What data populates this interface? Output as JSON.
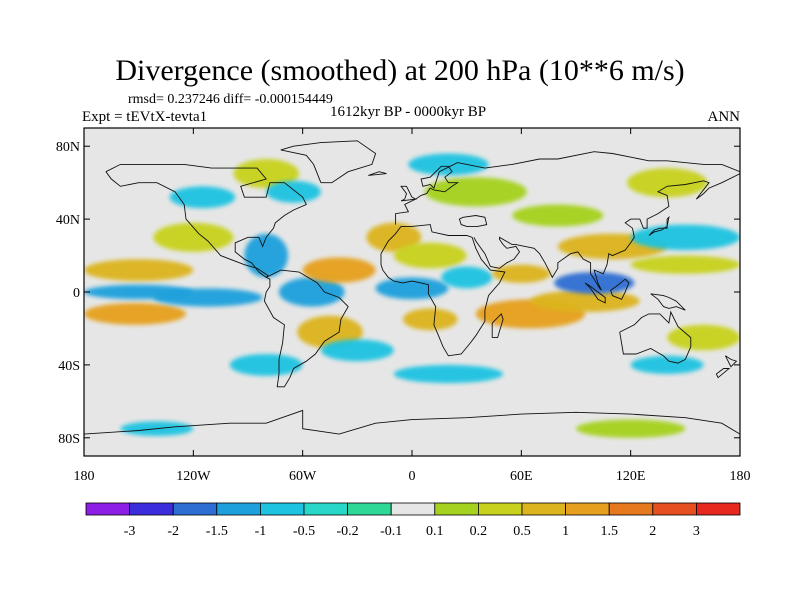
{
  "title": "Divergence (smoothed) at 200 hPa (10**6 m/s)",
  "stats": "rmsd= 0.237246 diff= -0.000154449",
  "experiment": "Expt = tEVtX-tevta1",
  "period": "1612kyr BP - 0000kyr BP",
  "season": "ANN",
  "map_axes": {
    "lon_ticks": [
      {
        "lon": -180,
        "label": "180"
      },
      {
        "lon": -120,
        "label": "120W"
      },
      {
        "lon": -60,
        "label": "60W"
      },
      {
        "lon": 0,
        "label": "0"
      },
      {
        "lon": 60,
        "label": "60E"
      },
      {
        "lon": 120,
        "label": "120E"
      },
      {
        "lon": 180,
        "label": "180"
      }
    ],
    "lat_ticks": [
      {
        "lat": 80,
        "label": "80N"
      },
      {
        "lat": 40,
        "label": "40N"
      },
      {
        "lat": 0,
        "label": "0"
      },
      {
        "lat": -40,
        "label": "40S"
      },
      {
        "lat": -80,
        "label": "80S"
      }
    ],
    "lon_range": [
      -180,
      180
    ],
    "lat_range": [
      -90,
      90
    ]
  },
  "colorbar": {
    "colors": [
      "#8c1ee6",
      "#3c2ddc",
      "#2d6ed2",
      "#1ea0dc",
      "#1ec3e1",
      "#28d7c8",
      "#2dd796",
      "#e6e6e6",
      "#a5d21e",
      "#c8d21e",
      "#dcb41e",
      "#e6a01e",
      "#e6781e",
      "#e6501e",
      "#e6281e"
    ],
    "labels": [
      "-3",
      "-2",
      "-1.5",
      "-1",
      "-0.5",
      "-0.2",
      "-0.1",
      "0.1",
      "0.2",
      "0.5",
      "1",
      "1.5",
      "2",
      "3"
    ]
  },
  "field_blobs": [
    {
      "lon": -150,
      "lat": 12,
      "rlon": 30,
      "rlat": 6,
      "v": 1
    },
    {
      "lon": -152,
      "lat": -12,
      "rlon": 28,
      "rlat": 6,
      "v": 1.5
    },
    {
      "lon": -150,
      "lat": 0,
      "rlon": 30,
      "rlat": 4,
      "v": -1
    },
    {
      "lon": -112,
      "lat": -3,
      "rlon": 30,
      "rlat": 5,
      "v": -1
    },
    {
      "lon": -120,
      "lat": 30,
      "rlon": 22,
      "rlat": 8,
      "v": 0.5
    },
    {
      "lon": -115,
      "lat": 52,
      "rlon": 18,
      "rlat": 6,
      "v": -0.5
    },
    {
      "lon": -80,
      "lat": 65,
      "rlon": 18,
      "rlat": 8,
      "v": 0.5
    },
    {
      "lon": -65,
      "lat": 55,
      "rlon": 15,
      "rlat": 6,
      "v": -0.5
    },
    {
      "lon": -80,
      "lat": 20,
      "rlon": 12,
      "rlat": 12,
      "v": -1
    },
    {
      "lon": -55,
      "lat": 0,
      "rlon": 18,
      "rlat": 8,
      "v": -1
    },
    {
      "lon": -40,
      "lat": 12,
      "rlon": 20,
      "rlat": 7,
      "v": 1.5
    },
    {
      "lon": -45,
      "lat": -22,
      "rlon": 18,
      "rlat": 9,
      "v": 1
    },
    {
      "lon": -30,
      "lat": -32,
      "rlon": 20,
      "rlat": 6,
      "v": -0.5
    },
    {
      "lon": -10,
      "lat": 30,
      "rlon": 15,
      "rlat": 8,
      "v": 1
    },
    {
      "lon": 10,
      "lat": 20,
      "rlon": 20,
      "rlat": 7,
      "v": 0.5
    },
    {
      "lon": 0,
      "lat": 2,
      "rlon": 20,
      "rlat": 6,
      "v": -1
    },
    {
      "lon": 10,
      "lat": -15,
      "rlon": 15,
      "rlat": 6,
      "v": 1
    },
    {
      "lon": 30,
      "lat": 8,
      "rlon": 14,
      "rlat": 6,
      "v": -0.5
    },
    {
      "lon": 60,
      "lat": 10,
      "rlon": 16,
      "rlat": 5,
      "v": 1
    },
    {
      "lon": 65,
      "lat": -12,
      "rlon": 30,
      "rlat": 8,
      "v": 1.5
    },
    {
      "lon": 95,
      "lat": -5,
      "rlon": 30,
      "rlat": 6,
      "v": 1
    },
    {
      "lon": 100,
      "lat": 5,
      "rlon": 22,
      "rlat": 6,
      "v": -1.5
    },
    {
      "lon": 110,
      "lat": 25,
      "rlon": 30,
      "rlat": 7,
      "v": 1
    },
    {
      "lon": 150,
      "lat": 30,
      "rlon": 30,
      "rlat": 7,
      "v": -0.5
    },
    {
      "lon": 150,
      "lat": 15,
      "rlon": 30,
      "rlat": 5,
      "v": 0.5
    },
    {
      "lon": 35,
      "lat": 55,
      "rlon": 28,
      "rlat": 8,
      "v": 0.2
    },
    {
      "lon": 20,
      "lat": 70,
      "rlon": 22,
      "rlat": 6,
      "v": -0.5
    },
    {
      "lon": 80,
      "lat": 42,
      "rlon": 25,
      "rlat": 6,
      "v": 0.2
    },
    {
      "lon": 140,
      "lat": 60,
      "rlon": 22,
      "rlat": 8,
      "v": 0.5
    },
    {
      "lon": 160,
      "lat": -25,
      "rlon": 20,
      "rlat": 7,
      "v": 0.5
    },
    {
      "lon": 140,
      "lat": -40,
      "rlon": 20,
      "rlat": 5,
      "v": -0.5
    },
    {
      "lon": 20,
      "lat": -45,
      "rlon": 30,
      "rlat": 5,
      "v": -0.5
    },
    {
      "lon": -80,
      "lat": -40,
      "rlon": 20,
      "rlat": 6,
      "v": -0.5
    },
    {
      "lon": 120,
      "lat": -75,
      "rlon": 30,
      "rlat": 5,
      "v": 0.2
    },
    {
      "lon": -140,
      "lat": -75,
      "rlon": 20,
      "rlat": 4,
      "v": -0.5
    }
  ],
  "coastlines": [
    [
      [
        -168,
        66
      ],
      [
        -160,
        70
      ],
      [
        -140,
        70
      ],
      [
        -125,
        70
      ],
      [
        -110,
        68
      ],
      [
        -95,
        68
      ],
      [
        -85,
        68
      ],
      [
        -80,
        62
      ],
      [
        -94,
        58
      ],
      [
        -92,
        52
      ],
      [
        -80,
        52
      ],
      [
        -78,
        60
      ],
      [
        -70,
        60
      ],
      [
        -60,
        52
      ],
      [
        -58,
        48
      ],
      [
        -65,
        45
      ],
      [
        -70,
        42
      ],
      [
        -75,
        38
      ],
      [
        -76,
        35
      ],
      [
        -80,
        30
      ],
      [
        -82,
        25
      ],
      [
        -84,
        30
      ],
      [
        -90,
        30
      ],
      [
        -97,
        27
      ],
      [
        -97,
        22
      ],
      [
        -92,
        18
      ],
      [
        -88,
        16
      ],
      [
        -84,
        11
      ],
      [
        -80,
        8
      ],
      [
        -79,
        9
      ],
      [
        -85,
        13
      ],
      [
        -92,
        15
      ],
      [
        -105,
        20
      ],
      [
        -112,
        28
      ],
      [
        -117,
        32
      ],
      [
        -124,
        40
      ],
      [
        -125,
        48
      ],
      [
        -130,
        55
      ],
      [
        -140,
        60
      ],
      [
        -150,
        60
      ],
      [
        -160,
        58
      ],
      [
        -165,
        62
      ],
      [
        -168,
        66
      ]
    ],
    [
      [
        -80,
        8
      ],
      [
        -72,
        12
      ],
      [
        -62,
        11
      ],
      [
        -52,
        5
      ],
      [
        -48,
        0
      ],
      [
        -40,
        -3
      ],
      [
        -35,
        -8
      ],
      [
        -39,
        -15
      ],
      [
        -40,
        -22
      ],
      [
        -48,
        -27
      ],
      [
        -53,
        -34
      ],
      [
        -58,
        -38
      ],
      [
        -65,
        -42
      ],
      [
        -67,
        -47
      ],
      [
        -70,
        -52
      ],
      [
        -74,
        -52
      ],
      [
        -73,
        -45
      ],
      [
        -73,
        -37
      ],
      [
        -71,
        -28
      ],
      [
        -70,
        -18
      ],
      [
        -76,
        -14
      ],
      [
        -81,
        -5
      ],
      [
        -80,
        0
      ],
      [
        -78,
        3
      ],
      [
        -78,
        7
      ],
      [
        -80,
        8
      ]
    ],
    [
      [
        -50,
        60
      ],
      [
        -44,
        60
      ],
      [
        -35,
        66
      ],
      [
        -22,
        70
      ],
      [
        -20,
        76
      ],
      [
        -30,
        83
      ],
      [
        -50,
        82
      ],
      [
        -65,
        80
      ],
      [
        -72,
        78
      ],
      [
        -58,
        75
      ],
      [
        -54,
        70
      ],
      [
        -50,
        60
      ]
    ],
    [
      [
        -17,
        15
      ],
      [
        -17,
        21
      ],
      [
        -13,
        28
      ],
      [
        -9,
        32
      ],
      [
        -6,
        36
      ],
      [
        0,
        36
      ],
      [
        10,
        37
      ],
      [
        11,
        33
      ],
      [
        20,
        31
      ],
      [
        30,
        31
      ],
      [
        33,
        30
      ],
      [
        35,
        24
      ],
      [
        38,
        18
      ],
      [
        43,
        12
      ],
      [
        51,
        11
      ],
      [
        48,
        5
      ],
      [
        42,
        -2
      ],
      [
        40,
        -10
      ],
      [
        40,
        -16
      ],
      [
        35,
        -24
      ],
      [
        32,
        -28
      ],
      [
        27,
        -34
      ],
      [
        20,
        -35
      ],
      [
        17,
        -30
      ],
      [
        15,
        -25
      ],
      [
        12,
        -18
      ],
      [
        13,
        -8
      ],
      [
        9,
        -1
      ],
      [
        9,
        4
      ],
      [
        5,
        5
      ],
      [
        0,
        6
      ],
      [
        -5,
        5
      ],
      [
        -10,
        6
      ],
      [
        -13,
        8
      ],
      [
        -16,
        12
      ],
      [
        -17,
        15
      ]
    ],
    [
      [
        -9,
        37
      ],
      [
        -9,
        43
      ],
      [
        -2,
        44
      ],
      [
        -4,
        48
      ],
      [
        2,
        51
      ],
      [
        5,
        53
      ],
      [
        8,
        54
      ],
      [
        10,
        57
      ],
      [
        12,
        56
      ],
      [
        18,
        55
      ],
      [
        22,
        58
      ],
      [
        25,
        60
      ],
      [
        20,
        60
      ],
      [
        18,
        63
      ],
      [
        22,
        66
      ],
      [
        20,
        69
      ],
      [
        16,
        69
      ],
      [
        10,
        63
      ],
      [
        5,
        62
      ],
      [
        6,
        58
      ],
      [
        10,
        59
      ],
      [
        12,
        57
      ],
      [
        15,
        66
      ],
      [
        25,
        71
      ],
      [
        40,
        68
      ],
      [
        55,
        70
      ],
      [
        70,
        73
      ],
      [
        80,
        73
      ],
      [
        100,
        77
      ],
      [
        110,
        76
      ],
      [
        130,
        72
      ],
      [
        140,
        72
      ],
      [
        160,
        70
      ],
      [
        170,
        70
      ],
      [
        180,
        66
      ]
    ],
    [
      [
        28,
        41
      ],
      [
        35,
        42
      ],
      [
        40,
        41
      ],
      [
        41,
        37
      ],
      [
        36,
        36
      ],
      [
        30,
        36
      ],
      [
        27,
        37
      ],
      [
        26,
        40
      ],
      [
        28,
        41
      ]
    ],
    [
      [
        34,
        30
      ],
      [
        35,
        28
      ],
      [
        40,
        21
      ],
      [
        43,
        14
      ],
      [
        48,
        13
      ],
      [
        52,
        16
      ],
      [
        56,
        18
      ],
      [
        59,
        22
      ],
      [
        57,
        25
      ],
      [
        52,
        24
      ],
      [
        50,
        26
      ],
      [
        48,
        29
      ],
      [
        48,
        30
      ],
      [
        55,
        26
      ],
      [
        57,
        26
      ],
      [
        62,
        25
      ],
      [
        67,
        24
      ],
      [
        70,
        21
      ],
      [
        73,
        16
      ],
      [
        75,
        12
      ],
      [
        77,
        8
      ],
      [
        80,
        13
      ],
      [
        80,
        16
      ],
      [
        87,
        21
      ],
      [
        91,
        22
      ],
      [
        94,
        18
      ],
      [
        98,
        16
      ],
      [
        98,
        10
      ],
      [
        100,
        7
      ],
      [
        103,
        2
      ],
      [
        104,
        1
      ],
      [
        102,
        5
      ],
      [
        100,
        12
      ],
      [
        105,
        10
      ],
      [
        107,
        15
      ],
      [
        108,
        21
      ],
      [
        110,
        20
      ],
      [
        117,
        23
      ],
      [
        120,
        27
      ],
      [
        122,
        30
      ],
      [
        121,
        35
      ],
      [
        117,
        38
      ],
      [
        120,
        40
      ],
      [
        125,
        40
      ],
      [
        127,
        35
      ],
      [
        129,
        35
      ],
      [
        129,
        40
      ],
      [
        135,
        43
      ],
      [
        141,
        47
      ],
      [
        140,
        53
      ],
      [
        135,
        55
      ],
      [
        140,
        58
      ],
      [
        150,
        59
      ],
      [
        160,
        61
      ],
      [
        163,
        60
      ],
      [
        156,
        51
      ],
      [
        160,
        54
      ],
      [
        163,
        57
      ],
      [
        170,
        60
      ],
      [
        180,
        65
      ]
    ],
    [
      [
        114,
        -22
      ],
      [
        116,
        -34
      ],
      [
        123,
        -34
      ],
      [
        131,
        -31
      ],
      [
        138,
        -35
      ],
      [
        141,
        -38
      ],
      [
        146,
        -39
      ],
      [
        150,
        -37
      ],
      [
        153,
        -30
      ],
      [
        153,
        -25
      ],
      [
        146,
        -19
      ],
      [
        142,
        -11
      ],
      [
        141,
        -17
      ],
      [
        136,
        -12
      ],
      [
        130,
        -12
      ],
      [
        126,
        -14
      ],
      [
        122,
        -18
      ],
      [
        114,
        -22
      ]
    ],
    [
      [
        130,
        31
      ],
      [
        133,
        34
      ],
      [
        136,
        35
      ],
      [
        140,
        35
      ],
      [
        140,
        40
      ],
      [
        141,
        41
      ],
      [
        140,
        36
      ],
      [
        137,
        34
      ],
      [
        133,
        33
      ],
      [
        130,
        31
      ]
    ],
    [
      [
        95,
        5
      ],
      [
        98,
        3
      ],
      [
        102,
        0
      ],
      [
        106,
        -3
      ],
      [
        106,
        -6
      ],
      [
        102,
        -4
      ],
      [
        98,
        2
      ],
      [
        95,
        5
      ]
    ],
    [
      [
        109,
        1
      ],
      [
        110,
        -2
      ],
      [
        115,
        -4
      ],
      [
        117,
        0
      ],
      [
        119,
        5
      ],
      [
        117,
        7
      ],
      [
        112,
        3
      ],
      [
        109,
        1
      ]
    ],
    [
      [
        131,
        -1
      ],
      [
        138,
        -2
      ],
      [
        141,
        -3
      ],
      [
        145,
        -5
      ],
      [
        150,
        -10
      ],
      [
        145,
        -8
      ],
      [
        141,
        -9
      ],
      [
        138,
        -8
      ],
      [
        135,
        -4
      ],
      [
        131,
        -1
      ]
    ],
    [
      [
        44,
        -25
      ],
      [
        47,
        -25
      ],
      [
        50,
        -15
      ],
      [
        49,
        -12
      ],
      [
        44,
        -17
      ],
      [
        44,
        -25
      ]
    ],
    [
      [
        -6,
        50
      ],
      [
        -4,
        51
      ],
      [
        -3,
        54
      ],
      [
        -6,
        58
      ],
      [
        -3,
        58
      ],
      [
        0,
        52
      ],
      [
        2,
        51
      ],
      [
        -6,
        50
      ]
    ],
    [
      [
        -24,
        64
      ],
      [
        -14,
        65
      ],
      [
        -18,
        66
      ],
      [
        -24,
        64
      ]
    ],
    [
      [
        -180,
        -78
      ],
      [
        -150,
        -76
      ],
      [
        -130,
        -74
      ],
      [
        -100,
        -72
      ],
      [
        -80,
        -72
      ],
      [
        -60,
        -65
      ],
      [
        -60,
        -75
      ],
      [
        -40,
        -78
      ],
      [
        -20,
        -72
      ],
      [
        0,
        -70
      ],
      [
        30,
        -69
      ],
      [
        60,
        -67
      ],
      [
        90,
        -66
      ],
      [
        120,
        -67
      ],
      [
        150,
        -69
      ],
      [
        170,
        -72
      ],
      [
        180,
        -78
      ]
    ],
    [
      [
        172,
        -35
      ],
      [
        175,
        -37
      ],
      [
        178,
        -38
      ],
      [
        175,
        -41
      ],
      [
        172,
        -35
      ]
    ],
    [
      [
        167,
        -45
      ],
      [
        171,
        -42
      ],
      [
        174,
        -42
      ],
      [
        168,
        -47
      ],
      [
        167,
        -45
      ]
    ]
  ]
}
